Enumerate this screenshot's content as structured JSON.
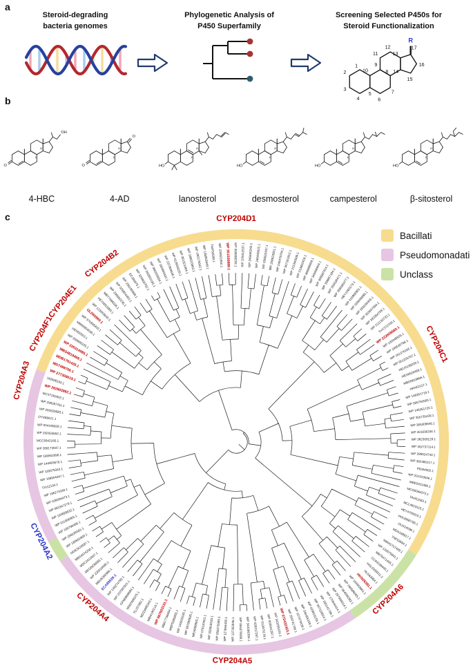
{
  "panel_a": {
    "label": "a",
    "steps": [
      {
        "line1": "Steroid-degrading",
        "line2": "bacteria genomes"
      },
      {
        "line1": "Phylogenetic Analysis of",
        "line2": "P450 Superfamily"
      },
      {
        "line1": "Screening Selected  P450s for",
        "line2": "Steroid Functionalization"
      }
    ],
    "carbon_numbers": [
      "1",
      "2",
      "3",
      "4",
      "5",
      "6",
      "7",
      "8",
      "9",
      "10",
      "11",
      "12",
      "13",
      "14",
      "15",
      "16",
      "17"
    ],
    "r_label": "R",
    "arrow_color": "#1f3a6e"
  },
  "panel_b": {
    "label": "b",
    "compounds": [
      {
        "name": "4-HBC",
        "head": "O",
        "tail": "OH",
        "chain": "hbc"
      },
      {
        "name": "4-AD",
        "head": "O",
        "tail": "O",
        "chain": "keto"
      },
      {
        "name": "lanosterol",
        "head": "HO",
        "tail": "",
        "chain": "lano"
      },
      {
        "name": "desmosterol",
        "head": "HO",
        "tail": "",
        "chain": "desmo"
      },
      {
        "name": "campesterol",
        "head": "HO",
        "tail": "",
        "chain": "campe"
      },
      {
        "name": "β-sitosterol",
        "head": "HO",
        "tail": "",
        "chain": "sito"
      }
    ]
  },
  "panel_c": {
    "label": "c",
    "legend": [
      {
        "label": "Bacillati",
        "color": "#F7DC8F"
      },
      {
        "label": "Pseudomonadati",
        "color": "#E6C6E2"
      },
      {
        "label": "Unclass",
        "color": "#CBE2A6"
      }
    ],
    "ring_segments": [
      {
        "from": -70,
        "to": 122,
        "color": "#F7DC8F"
      },
      {
        "from": 122,
        "to": 146,
        "color": "#CBE2A6"
      },
      {
        "from": 146,
        "to": 236,
        "color": "#E6C6E2"
      },
      {
        "from": 236,
        "to": 242,
        "color": "#CBE2A6"
      },
      {
        "from": 242,
        "to": 290,
        "color": "#E6C6E2"
      }
    ],
    "clades": [
      {
        "name": "CYP204D1",
        "angle": 0,
        "color": "#c00000"
      },
      {
        "name": "CYP204C1",
        "angle": 64,
        "color": "#c00000"
      },
      {
        "name": "CYP204A6",
        "angle": 136,
        "color": "#c00000"
      },
      {
        "name": "CYP204A5",
        "angle": 181,
        "color": "#c00000"
      },
      {
        "name": "CYP204A4",
        "angle": 221,
        "color": "#c00000"
      },
      {
        "name": "CYP204A2",
        "angle": 243,
        "color": "#2b35c7"
      },
      {
        "name": "CYP204A3",
        "angle": 286,
        "color": "#c00000"
      },
      {
        "name": "CYP204F1",
        "angle": 299,
        "color": "#c00000"
      },
      {
        "name": "CYP204E1",
        "angle": 309,
        "color": "#c00000"
      },
      {
        "name": "CYP204B2",
        "angle": 323,
        "color": "#c00000"
      }
    ],
    "tips_start_angle": -69,
    "tips": [
      {
        "t": "WP 277308019.1",
        "c": "r"
      },
      {
        "t": "MD7498766.1",
        "c": "r"
      },
      {
        "t": "MDB1761426.1",
        "c": "r"
      },
      {
        "t": "MBS4819468.1",
        "c": "r"
      },
      {
        "t": "WP 226314985.1",
        "c": "r"
      },
      {
        "t": "WP 350906225.1"
      },
      {
        "t": "HEN50503.1"
      },
      {
        "t": "MBR6954036.1"
      },
      {
        "t": "WP 370395402.1"
      },
      {
        "t": "OLD60969.1",
        "c": "r"
      },
      {
        "t": "WP 123059645.1"
      },
      {
        "t": "HEY6052893.1"
      },
      {
        "t": "MBT7486526.1"
      },
      {
        "t": "WP 336682235.1"
      },
      {
        "t": "WP 026854450.1"
      },
      {
        "t": "WP 256196998.1"
      },
      {
        "t": "ECJ90975.1"
      },
      {
        "t": "WP 326806752.1"
      },
      {
        "t": "WP 392602185.1"
      },
      {
        "t": "WP 380260954.1"
      },
      {
        "t": "WP 182893342.1"
      },
      {
        "t": "WP 237069636.1"
      },
      {
        "t": "WP 013955029.1"
      },
      {
        "t": "WP 361321464.1"
      },
      {
        "t": "WP 188015863.1"
      },
      {
        "t": "WP 196175642.1"
      },
      {
        "t": "WP 138953649.1"
      },
      {
        "t": "TWP50599.1"
      },
      {
        "t": "WP 235921650.1"
      },
      {
        "t": "WP 351536888.1",
        "c": "r"
      },
      {
        "t": "WP 393838293.1"
      },
      {
        "t": "WP 378412537.1"
      },
      {
        "t": "WP 246445242.1"
      },
      {
        "t": "WP 246443622.1"
      },
      {
        "t": "WP 208622437.1"
      },
      {
        "t": "WP 208623821.1"
      },
      {
        "t": "WP 246479754.1"
      },
      {
        "t": "WP 347161812.1"
      },
      {
        "t": "WP 211340599.1"
      },
      {
        "t": "WP 213862418.1"
      },
      {
        "t": "WP 366998909.1"
      },
      {
        "t": "WP 349496904.1"
      },
      {
        "t": "WP 399987414.1"
      },
      {
        "t": "WP 399857184.1"
      },
      {
        "t": "WP 355036471.1"
      },
      {
        "t": "WP 355036477.1"
      },
      {
        "t": "HEY1060173.1"
      },
      {
        "t": "WP 316966901.1"
      },
      {
        "t": "WP 335048988.1"
      },
      {
        "t": "WP 355036465.1"
      },
      {
        "t": "WP 353847094.1"
      },
      {
        "t": "WP 393384709.1"
      },
      {
        "t": "WP 211130733.1"
      },
      {
        "t": "THY372708.1"
      },
      {
        "t": "WP 222608580.1",
        "c": "r"
      },
      {
        "t": "WP 100448505.1"
      },
      {
        "t": "WP 199535766.1"
      },
      {
        "t": "WP 241376166.1"
      },
      {
        "t": "WP 051225707.1"
      },
      {
        "t": "HEU5139229.1"
      },
      {
        "t": "HEX6526469.1"
      },
      {
        "t": "MBO0819866.1"
      },
      {
        "t": "HKN52117.1"
      },
      {
        "t": "WP 146351718.1"
      },
      {
        "t": "WP 285750583.1"
      },
      {
        "t": "WP 146351720.1"
      },
      {
        "t": "WP 355735439.1"
      },
      {
        "t": "WP 365309646.1"
      },
      {
        "t": "WP 401838184.1"
      },
      {
        "t": "WP 382309129.1"
      },
      {
        "t": "WP 362737114.1"
      },
      {
        "t": "WP 399524740.1"
      },
      {
        "t": "WP 382486217.1"
      },
      {
        "t": "PID64002.1"
      },
      {
        "t": "WP 201919546.1"
      },
      {
        "t": "MBE0411486.1"
      },
      {
        "t": "MCG8346372.1"
      },
      {
        "t": "TAH51563.1"
      },
      {
        "t": "MCL4810115.1"
      },
      {
        "t": "HEY4700910.1"
      },
      {
        "t": "HOL8990785.1"
      },
      {
        "t": "OUS24096.1"
      },
      {
        "t": "MDA168917.1"
      },
      {
        "t": "TNF63584.1"
      },
      {
        "t": "MBW1757428.1"
      },
      {
        "t": "WP 126575841.1"
      },
      {
        "t": "MBT6471405.1"
      },
      {
        "t": "CCA4106400.1"
      },
      {
        "t": "HGL0339511.1"
      },
      {
        "t": "HLG63984.1"
      },
      {
        "t": "HKN26381.1",
        "c": "r"
      },
      {
        "t": "WP 104459861.1"
      },
      {
        "t": "WP 166586065.1"
      },
      {
        "t": "WP 064596392.1"
      },
      {
        "t": "WP 297994014.1"
      },
      {
        "t": "WP 179944414.1"
      },
      {
        "t": "WP 265141796.1"
      },
      {
        "t": "WP 347119814.1"
      },
      {
        "t": "WP 029916156.1"
      },
      {
        "t": "WP 346456159.1"
      },
      {
        "t": "WP 107473439.1"
      },
      {
        "t": "WP 259741746.1"
      },
      {
        "t": "WP 072432423.1",
        "c": "r"
      },
      {
        "t": "WP 343255151.1"
      },
      {
        "t": "WP 003041287.1"
      },
      {
        "t": "WP 013973178.1"
      },
      {
        "t": "WP 028217297.1"
      },
      {
        "t": "WP 343286394.1"
      },
      {
        "t": "WP 056370608.1"
      },
      {
        "t": "WP 137352846.1"
      },
      {
        "t": "WP 127894439.1"
      },
      {
        "t": "WP 056376369.1"
      },
      {
        "t": "WP 332818193.1"
      },
      {
        "t": "WP 075110461.1"
      },
      {
        "t": "MEI4898965.1"
      },
      {
        "t": "WP 387998635.1"
      },
      {
        "t": "WP 142629185.1"
      },
      {
        "t": "MBP5085855.1"
      },
      {
        "t": "MBC7738484.1"
      },
      {
        "t": "WP 067603131.1",
        "c": "r"
      },
      {
        "t": "MBI4190216.1"
      },
      {
        "t": "MD23095343.1"
      },
      {
        "t": "TCJ37082.1"
      },
      {
        "t": "M062408375.1"
      },
      {
        "t": "GFM0989694.1"
      },
      {
        "t": "WP 207097921.1"
      },
      {
        "t": "WP 149274792.1"
      },
      {
        "t": "ECA89539.1",
        "c": "b"
      },
      {
        "t": "MBU6392986.1"
      },
      {
        "t": "WP 226016598.1"
      },
      {
        "t": "MEO0030083.1"
      },
      {
        "t": "MDC2412697.1"
      },
      {
        "t": "MBS4474250.1"
      },
      {
        "t": "MDE2618587.1"
      },
      {
        "t": "WP 185661859.1"
      },
      {
        "t": "WP 298195581.1"
      },
      {
        "t": "WP 109796495.1"
      },
      {
        "t": "WP 011906905.1"
      },
      {
        "t": "WP 193828632.1"
      },
      {
        "t": "WP 062347279.1"
      },
      {
        "t": "WP 039334473.1"
      },
      {
        "t": "WP 196274180.1"
      },
      {
        "t": "TXI12134.1"
      },
      {
        "t": "WP 168904347.1"
      },
      {
        "t": "WP 118075342.1"
      },
      {
        "t": "WP 144903679.1"
      },
      {
        "t": "WP 168852098.1"
      },
      {
        "t": "WP 268173047.1"
      },
      {
        "t": "MCC6942185.1"
      },
      {
        "t": "WP 292933652.1"
      },
      {
        "t": "WP 054106829.1"
      },
      {
        "t": "OYX89621.1"
      },
      {
        "t": "WP 292620683.1"
      },
      {
        "t": "WP 298287411.1"
      },
      {
        "t": "MCX7283402.1"
      },
      {
        "t": "WP 292903882.1",
        "c": "r"
      },
      {
        "t": "HQ568193.1"
      }
    ]
  }
}
